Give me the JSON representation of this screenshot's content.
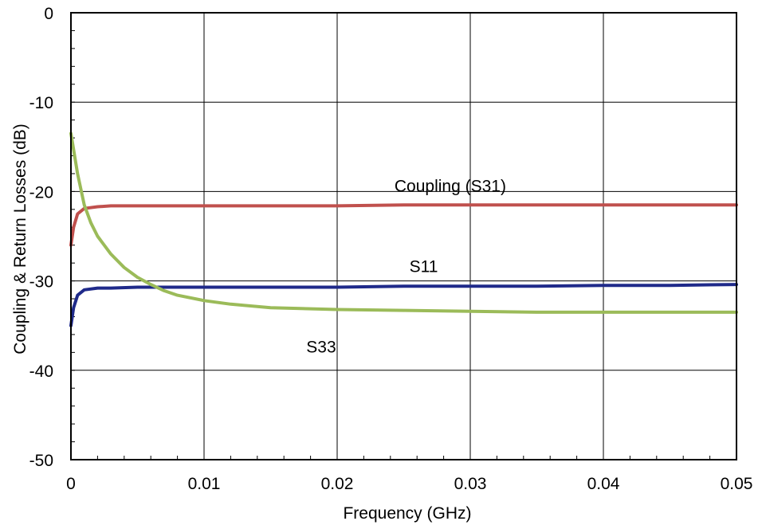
{
  "chart_data": {
    "type": "line",
    "title": "",
    "xlabel": "Frequency (GHz)",
    "ylabel": "Coupling & Return Losses (dB)",
    "xlim": [
      0,
      0.05
    ],
    "ylim": [
      -50,
      0
    ],
    "x_ticks": [
      "0",
      "0.01",
      "0.02",
      "0.03",
      "0.04",
      "0.05"
    ],
    "y_ticks": [
      "0",
      "-10",
      "-20",
      "-30",
      "-40",
      "-50"
    ],
    "grid": true,
    "series": [
      {
        "name": "Coupling (S31)",
        "color": "#c0504d",
        "x": [
          0.0,
          0.0002,
          0.0005,
          0.001,
          0.002,
          0.003,
          0.004,
          0.006,
          0.01,
          0.015,
          0.02,
          0.025,
          0.03,
          0.035,
          0.04,
          0.045,
          0.05
        ],
        "y": [
          -26.0,
          -24.0,
          -22.5,
          -21.9,
          -21.7,
          -21.6,
          -21.6,
          -21.6,
          -21.6,
          -21.6,
          -21.6,
          -21.5,
          -21.5,
          -21.5,
          -21.5,
          -21.5,
          -21.5
        ]
      },
      {
        "name": "S11",
        "color": "#1f2a8a",
        "x": [
          0.0,
          0.0002,
          0.0005,
          0.001,
          0.002,
          0.003,
          0.005,
          0.01,
          0.015,
          0.02,
          0.025,
          0.03,
          0.035,
          0.04,
          0.045,
          0.05
        ],
        "y": [
          -35.0,
          -33.0,
          -31.6,
          -31.0,
          -30.8,
          -30.8,
          -30.7,
          -30.7,
          -30.7,
          -30.7,
          -30.6,
          -30.6,
          -30.6,
          -30.5,
          -30.5,
          -30.4
        ]
      },
      {
        "name": "S33",
        "color": "#9bbb59",
        "x": [
          0.0,
          0.0005,
          0.001,
          0.0015,
          0.002,
          0.003,
          0.004,
          0.005,
          0.006,
          0.007,
          0.008,
          0.01,
          0.012,
          0.015,
          0.02,
          0.025,
          0.03,
          0.035,
          0.04,
          0.045,
          0.05
        ],
        "y": [
          -13.5,
          -18.0,
          -21.5,
          -23.5,
          -25.0,
          -27.0,
          -28.5,
          -29.6,
          -30.4,
          -31.1,
          -31.6,
          -32.2,
          -32.6,
          -33.0,
          -33.2,
          -33.3,
          -33.4,
          -33.5,
          -33.5,
          -33.5,
          -33.5
        ]
      }
    ],
    "annotations": [
      {
        "text": "Coupling (S31)",
        "x": 0.0285,
        "y": -20.0
      },
      {
        "text": "S11",
        "x": 0.0265,
        "y": -29.0
      },
      {
        "text": "S33",
        "x": 0.0188,
        "y": -38.0
      }
    ]
  }
}
